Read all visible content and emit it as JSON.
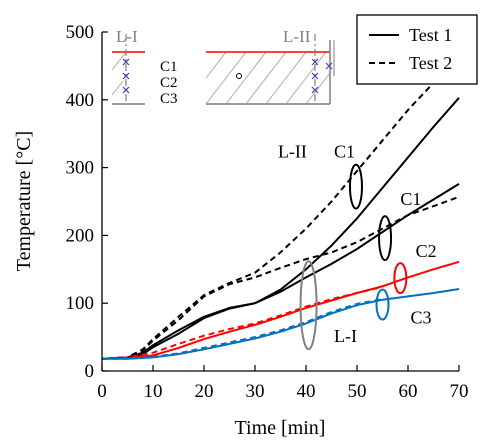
{
  "chart_data": {
    "type": "line",
    "xlabel": "Time [min]",
    "ylabel": "Temperature [°C]",
    "xlim": [
      0,
      70
    ],
    "ylim": [
      0,
      500
    ],
    "xticks": [
      0,
      10,
      20,
      30,
      40,
      50,
      60,
      70
    ],
    "yticks": [
      0,
      100,
      200,
      300,
      400,
      500
    ],
    "grid": false,
    "legend": {
      "position": "top-right",
      "entries": [
        {
          "label": "Test 1",
          "dash": "solid"
        },
        {
          "label": "Test 2",
          "dash": "dashed"
        }
      ]
    },
    "series": [
      {
        "id": "L-II C1 Test 1",
        "color": "#000000",
        "dash": "solid",
        "x": [
          0,
          5,
          8,
          10,
          15,
          20,
          25,
          30,
          35,
          40,
          45,
          50,
          55,
          60,
          65,
          70
        ],
        "y": [
          18,
          20,
          27,
          38,
          60,
          80,
          93,
          100,
          120,
          150,
          185,
          225,
          270,
          315,
          360,
          403
        ]
      },
      {
        "id": "L-II C1 Test 2",
        "color": "#000000",
        "dash": "dashed",
        "x": [
          0,
          5,
          8,
          10,
          15,
          20,
          25,
          30,
          35,
          40,
          45,
          50,
          55,
          60,
          65,
          70
        ],
        "y": [
          18,
          20,
          32,
          47,
          80,
          112,
          130,
          145,
          175,
          210,
          250,
          295,
          340,
          385,
          425,
          470
        ]
      },
      {
        "id": "L-I C1 Test 1",
        "color": "#000000",
        "dash": "solid",
        "x": [
          0,
          5,
          8,
          10,
          15,
          20,
          25,
          30,
          35,
          40,
          45,
          50,
          55,
          60,
          65,
          70
        ],
        "y": [
          18,
          20,
          25,
          35,
          55,
          78,
          92,
          100,
          117,
          138,
          158,
          180,
          205,
          230,
          253,
          276
        ]
      },
      {
        "id": "L-I C1 Test 2",
        "color": "#000000",
        "dash": "dashed",
        "x": [
          0,
          5,
          8,
          10,
          15,
          20,
          25,
          30,
          35,
          40,
          45,
          50,
          55,
          60,
          65,
          70
        ],
        "y": [
          18,
          20,
          30,
          45,
          75,
          110,
          128,
          138,
          152,
          165,
          175,
          190,
          210,
          230,
          243,
          257
        ]
      },
      {
        "id": "L-I C2 Test 1",
        "color": "#ff0000",
        "dash": "solid",
        "x": [
          0,
          5,
          10,
          15,
          20,
          25,
          30,
          35,
          40,
          45,
          50,
          55,
          60,
          65,
          70
        ],
        "y": [
          18,
          19,
          23,
          34,
          47,
          58,
          68,
          80,
          93,
          104,
          115,
          125,
          138,
          150,
          161
        ]
      },
      {
        "id": "L-I C2 Test 2",
        "color": "#ff0000",
        "dash": "dashed",
        "x": [
          0,
          5,
          10,
          15,
          20,
          25,
          30,
          35,
          40,
          45,
          50,
          55
        ],
        "y": [
          18,
          20,
          27,
          40,
          52,
          62,
          70,
          82,
          95,
          106,
          115,
          124
        ]
      },
      {
        "id": "L-I C3 Test 1",
        "color": "#0070c0",
        "dash": "solid",
        "x": [
          0,
          5,
          10,
          15,
          20,
          25,
          30,
          35,
          40,
          45,
          50,
          55,
          60,
          65,
          70
        ],
        "y": [
          18,
          18,
          20,
          25,
          32,
          40,
          48,
          58,
          70,
          85,
          97,
          105,
          110,
          115,
          121
        ]
      },
      {
        "id": "L-I C3 Test 2",
        "color": "#0070c0",
        "dash": "dashed",
        "x": [
          0,
          5,
          10,
          15,
          20,
          25,
          30,
          35,
          40,
          45,
          50,
          55
        ],
        "y": [
          18,
          18,
          21,
          26,
          34,
          42,
          50,
          60,
          72,
          87,
          99,
          106
        ]
      }
    ],
    "annotations": [
      {
        "text": "L-II",
        "x": 34.5,
        "y": 315
      },
      {
        "text": "C1",
        "x": 45.5,
        "y": 315
      },
      {
        "text": "C1",
        "x": 58.5,
        "y": 245
      },
      {
        "text": "C2",
        "x": 61.5,
        "y": 168
      },
      {
        "text": "C3",
        "x": 60.5,
        "y": 70
      },
      {
        "text": "L-I",
        "x": 45.5,
        "y": 43
      }
    ],
    "ellipses": [
      {
        "x": 49.8,
        "y": 272,
        "color": "#000000"
      },
      {
        "x": 55.5,
        "y": 196,
        "color": "#000000"
      },
      {
        "x": 58.5,
        "y": 137,
        "color": "#ff0000"
      },
      {
        "x": 55.0,
        "y": 98,
        "color": "#0070c0"
      },
      {
        "x": 40.5,
        "y": 97,
        "color": "#808080"
      }
    ],
    "inset": {
      "labels": [
        "L-I",
        "L-II",
        "C1",
        "C2",
        "C3"
      ]
    }
  }
}
